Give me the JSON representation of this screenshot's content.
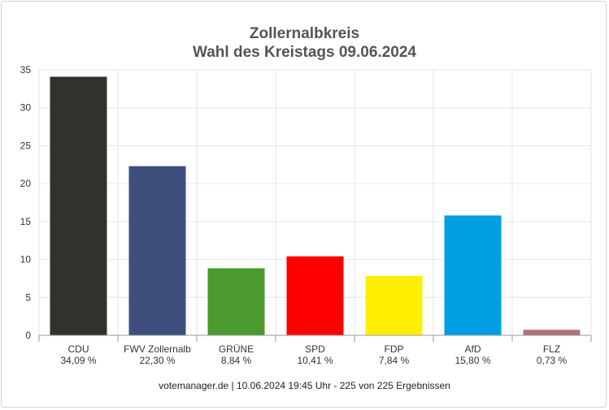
{
  "chart_data": {
    "type": "bar",
    "title_line1": "Zollernalbkreis",
    "title_line2": "Wahl des Kreistags 09.06.2024",
    "footer": "votemanager.de | 10.06.2024 19:45 Uhr - 225 von 225 Ergebnissen",
    "xlabel": "",
    "ylabel": "",
    "ylim": [
      0,
      35
    ],
    "yticks": [
      0,
      5,
      10,
      15,
      20,
      25,
      30,
      35
    ],
    "grid": true,
    "legend": "none",
    "categories": [
      "CDU",
      "FWV Zollernalb",
      "GRÜNE",
      "SPD",
      "FDP",
      "AfD",
      "FLZ"
    ],
    "values": [
      34.09,
      22.3,
      8.84,
      10.41,
      7.84,
      15.8,
      0.73
    ],
    "value_labels": [
      "34,09 %",
      "22,30 %",
      "8,84 %",
      "10,41 %",
      "7,84 %",
      "15,80 %",
      "0,73 %"
    ],
    "colors": [
      "#32312e",
      "#3d4f7c",
      "#4a9a2d",
      "#ff0000",
      "#ffee00",
      "#009fe3",
      "#b17474"
    ]
  }
}
